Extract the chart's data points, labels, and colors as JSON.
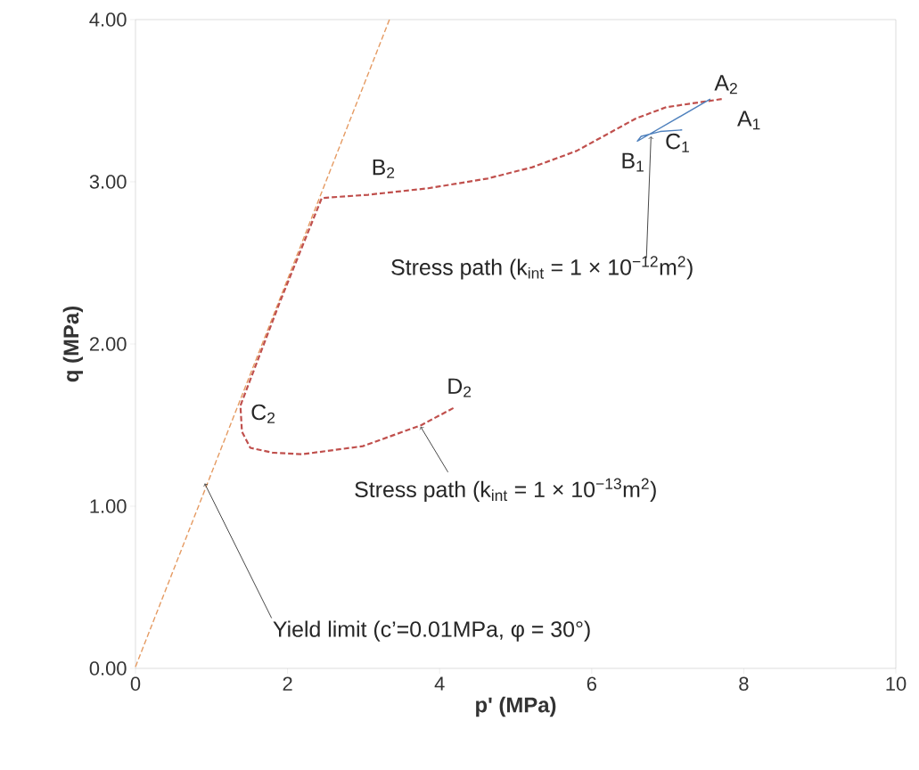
{
  "chart_data": {
    "type": "line",
    "xlabel": "p' (MPa)",
    "ylabel": "q (MPa)",
    "xlim": [
      0,
      10
    ],
    "ylim": [
      0,
      4
    ],
    "xticks": [
      0,
      2,
      4,
      6,
      8,
      10
    ],
    "yticks": [
      {
        "value": 0,
        "label": "0.00"
      },
      {
        "value": 1,
        "label": "1.00"
      },
      {
        "value": 2,
        "label": "2.00"
      },
      {
        "value": 3,
        "label": "3.00"
      },
      {
        "value": 4,
        "label": "4.00"
      }
    ],
    "grid": false,
    "marker": "none",
    "series": [
      {
        "color": "#e59b63",
        "line_style": "dashed",
        "x": [
          0,
          3.34
        ],
        "values": [
          0.01,
          4
        ]
      },
      {
        "color": "#c0504d",
        "line_style": "dashed",
        "x": [
          7.71,
          6.98,
          6.58,
          6.19,
          5.8,
          5.22,
          4.63,
          3.85,
          3.06,
          2.45,
          1.9,
          1.38,
          1.4,
          1.51,
          1.8,
          2.19,
          2.99,
          3.76,
          4.2
        ],
        "values": [
          3.51,
          3.46,
          3.39,
          3.29,
          3.19,
          3.09,
          3.02,
          2.96,
          2.92,
          2.9,
          2.26,
          1.62,
          1.46,
          1.36,
          1.33,
          1.32,
          1.37,
          1.5,
          1.61
        ]
      },
      {
        "color": "#4f81bd",
        "line_style": "solid",
        "x": [
          7.56,
          6.6,
          6.65,
          6.9,
          7.19
        ],
        "values": [
          3.51,
          3.25,
          3.28,
          3.31,
          3.32
        ]
      }
    ],
    "annotations": [
      {
        "text": "A$_{2}$",
        "x": 7.71,
        "y": 3.51
      },
      {
        "text": "A$_{1}$",
        "x": 7.56,
        "y": 3.51
      },
      {
        "text": "B$_{1}$",
        "x": 6.6,
        "y": 3.25
      },
      {
        "text": "C$_{1}$",
        "x": 7.19,
        "y": 3.32
      },
      {
        "text": "B$_{2}$",
        "x": 2.45,
        "y": 2.9
      },
      {
        "text": "C$_{2}$",
        "x": 1.38,
        "y": 1.62
      },
      {
        "text": "D$_{2}$",
        "x": 4.2,
        "y": 1.61
      },
      {
        "text": "Stress path (k$_{int}$ = 1 × 10$^{−12}$m$^{2}$)",
        "x": 6.78,
        "y": 3.28
      },
      {
        "text": "Stress path (k$_{int}$ = 1 × 10$^{−13}$m$^{2}$)",
        "x": 3.75,
        "y": 1.49
      },
      {
        "text": "Yield limit (c’=0.01MPa, φ = 30°)",
        "x": 0.91,
        "y": 1.14
      }
    ]
  }
}
